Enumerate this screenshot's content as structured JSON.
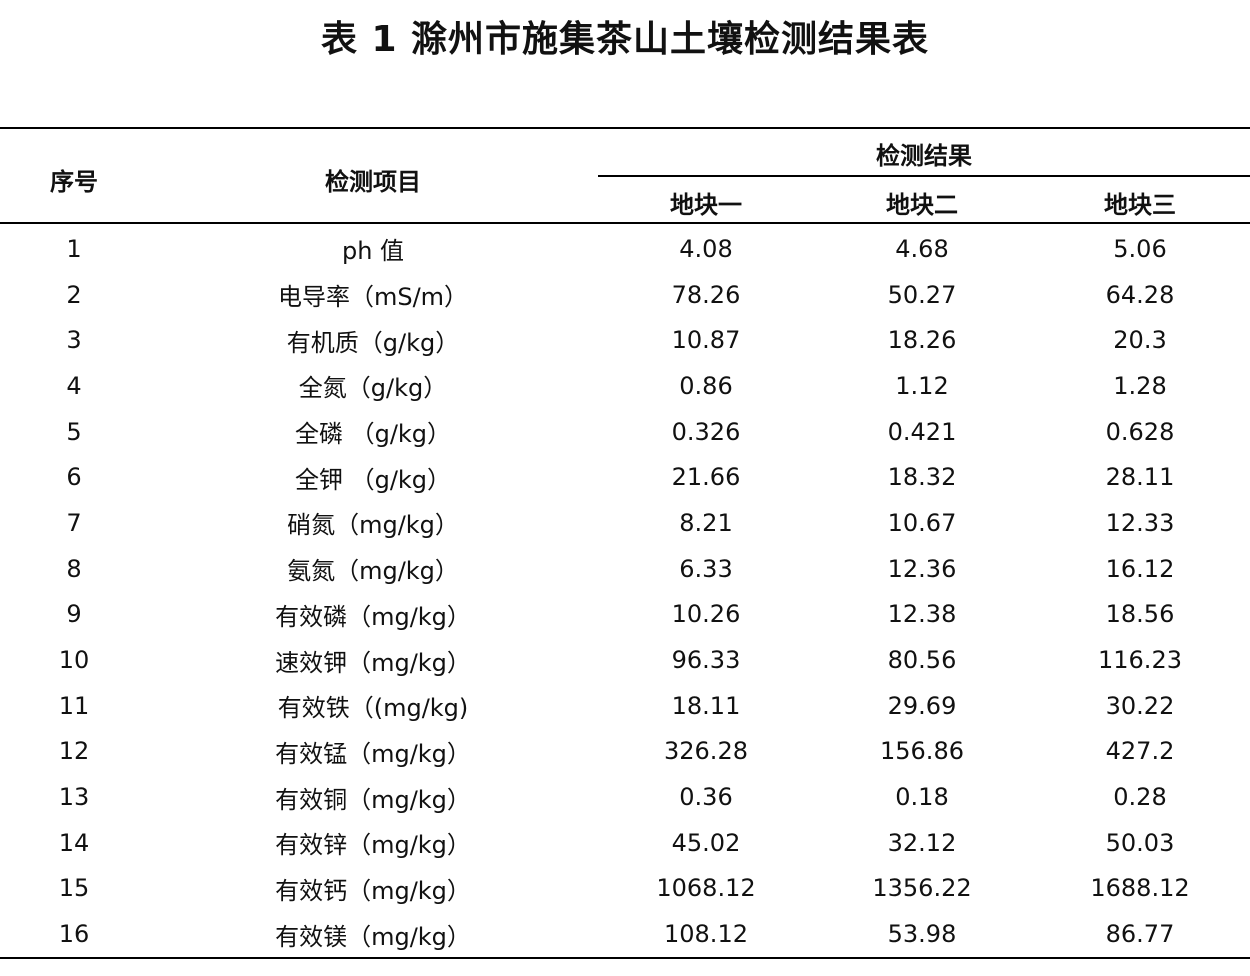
{
  "title": "表 1  滁州市施集茶山土壤检测结果表",
  "headers": {
    "index": "序号",
    "item": "检测项目",
    "results": "检测结果",
    "plots": [
      "地块一",
      "地块二",
      "地块三"
    ]
  },
  "rows": [
    [
      "1",
      "ph 值",
      "4.08",
      "4.68",
      "5.06"
    ],
    [
      "2",
      "电导率（mS/m）",
      "78.26",
      "50.27",
      "64.28"
    ],
    [
      "3",
      "有机质（g/kg）",
      "10.87",
      "18.26",
      "20.3"
    ],
    [
      "4",
      "全氮（g/kg）",
      "0.86",
      "1.12",
      "1.28"
    ],
    [
      "5",
      "全磷 （g/kg）",
      "0.326",
      "0.421",
      "0.628"
    ],
    [
      "6",
      "全钾 （g/kg）",
      "21.66",
      "18.32",
      "28.11"
    ],
    [
      "7",
      "硝氮（mg/kg）",
      "8.21",
      "10.67",
      "12.33"
    ],
    [
      "8",
      "氨氮（mg/kg）",
      "6.33",
      "12.36",
      "16.12"
    ],
    [
      "9",
      "有效磷（mg/kg）",
      "10.26",
      "12.38",
      "18.56"
    ],
    [
      "10",
      "速效钾（mg/kg）",
      "96.33",
      "80.56",
      "116.23"
    ],
    [
      "11",
      "有效铁（(mg/kg)",
      "18.11",
      "29.69",
      "30.22"
    ],
    [
      "12",
      "有效锰（mg/kg）",
      "326.28",
      "156.86",
      "427.2"
    ],
    [
      "13",
      "有效铜（mg/kg）",
      "0.36",
      "0.18",
      "0.28"
    ],
    [
      "14",
      "有效锌（mg/kg）",
      "45.02",
      "32.12",
      "50.03"
    ],
    [
      "15",
      "有效钙（mg/kg）",
      "1068.12",
      "1356.22",
      "1688.12"
    ],
    [
      "16",
      "有效镁（mg/kg）",
      "108.12",
      "53.98",
      "86.77"
    ]
  ]
}
